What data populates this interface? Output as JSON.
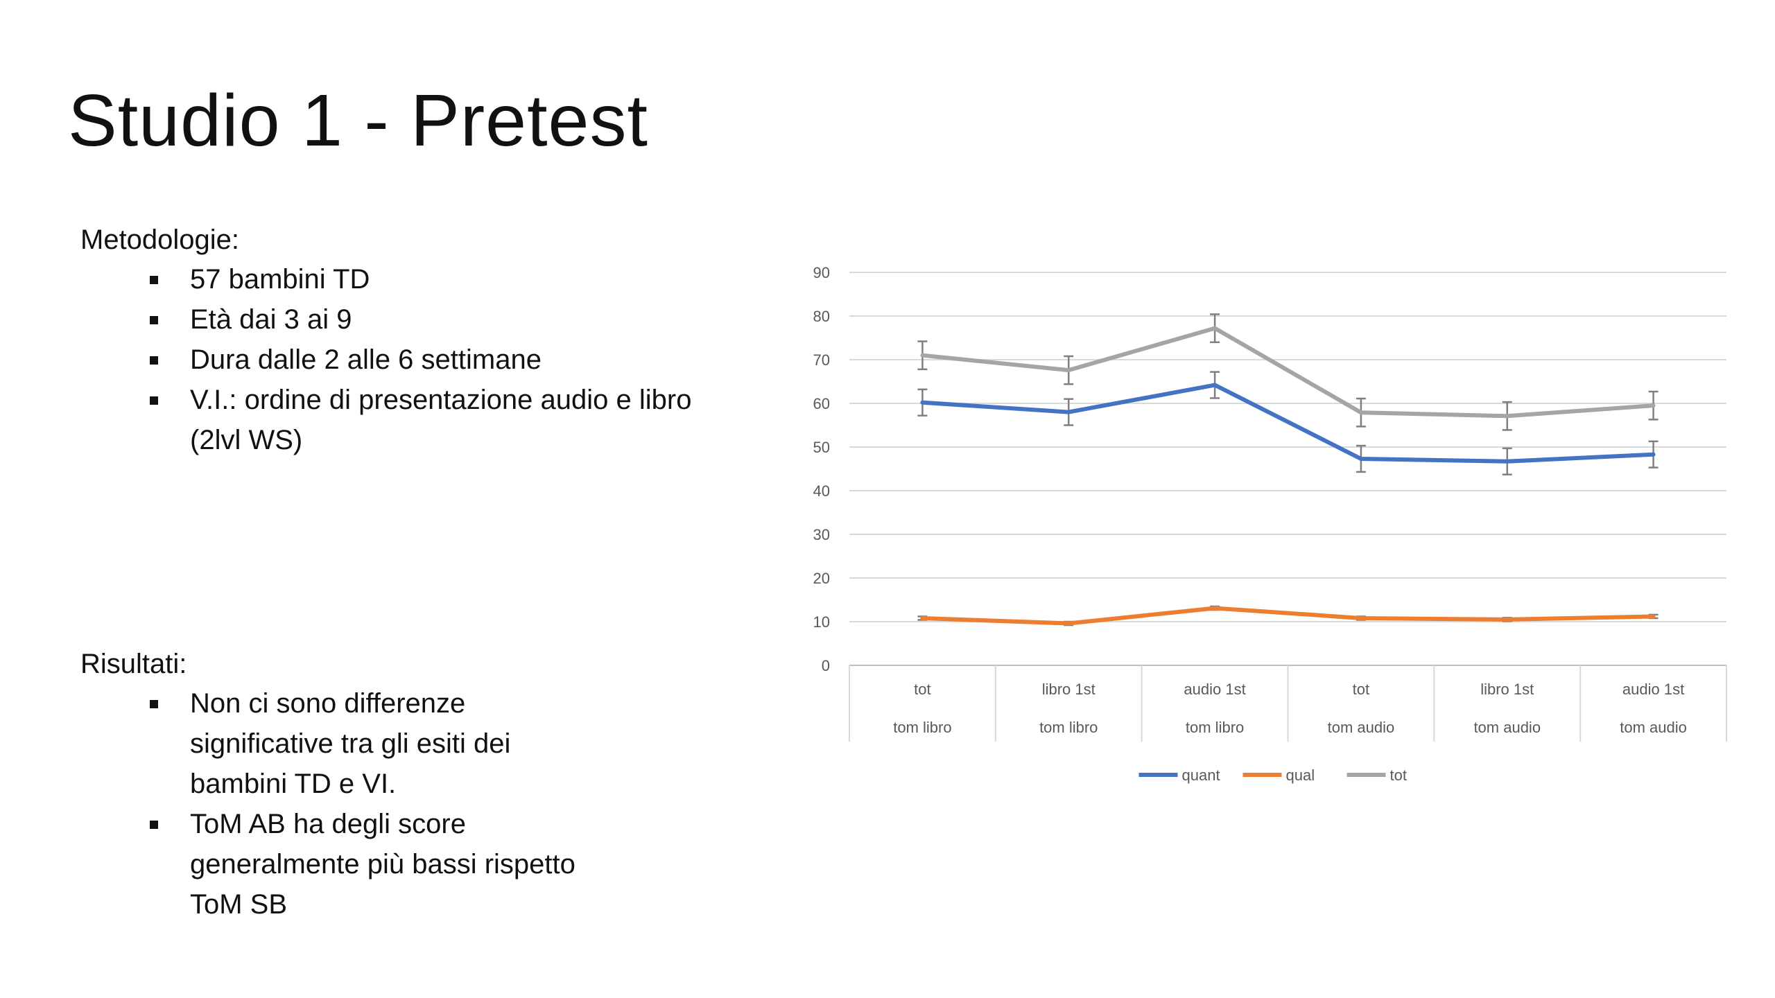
{
  "slide": {
    "title": "Studio 1 - Pretest",
    "methods_heading": "Metodologie:",
    "methods_items": [
      "57 bambini TD",
      "Età dai 3 ai 9",
      "Dura dalle 2 alle 6 settimane",
      "V.I.: ordine di presentazione audio e libro (2lvl WS)"
    ],
    "results_heading": "Risultati:",
    "results_items": [
      "Non ci sono differenze significative tra gli esiti dei bambini TD e VI.",
      "ToM AB ha degli score generalmente più bassi rispetto ToM SB"
    ]
  },
  "chart_data": {
    "type": "line",
    "ylim": [
      0,
      90
    ],
    "yticks": [
      0,
      10,
      20,
      30,
      40,
      50,
      60,
      70,
      80,
      90
    ],
    "grid": true,
    "legend_position": "bottom",
    "categories": [
      {
        "inner": "tot",
        "outer": "tom libro"
      },
      {
        "inner": "libro 1st",
        "outer": "tom libro"
      },
      {
        "inner": "audio 1st",
        "outer": "tom libro"
      },
      {
        "inner": "tot",
        "outer": "tom audio"
      },
      {
        "inner": "libro 1st",
        "outer": "tom audio"
      },
      {
        "inner": "audio 1st",
        "outer": "tom audio"
      }
    ],
    "series": [
      {
        "name": "quant",
        "color": "#4472C4",
        "values": [
          60.2,
          58.0,
          64.2,
          47.3,
          46.7,
          48.3
        ],
        "error": [
          3.0,
          3.0,
          3.0,
          3.0,
          3.0,
          3.0
        ]
      },
      {
        "name": "qual",
        "color": "#ED7D31",
        "values": [
          10.8,
          9.6,
          13.1,
          10.8,
          10.5,
          11.2
        ],
        "error": [
          0.4,
          0.4,
          0.4,
          0.4,
          0.4,
          0.4
        ]
      },
      {
        "name": "tot",
        "color": "#A5A5A5",
        "values": [
          71.0,
          67.6,
          77.2,
          57.9,
          57.1,
          59.5
        ],
        "error": [
          3.2,
          3.2,
          3.2,
          3.2,
          3.2,
          3.2
        ]
      }
    ]
  }
}
